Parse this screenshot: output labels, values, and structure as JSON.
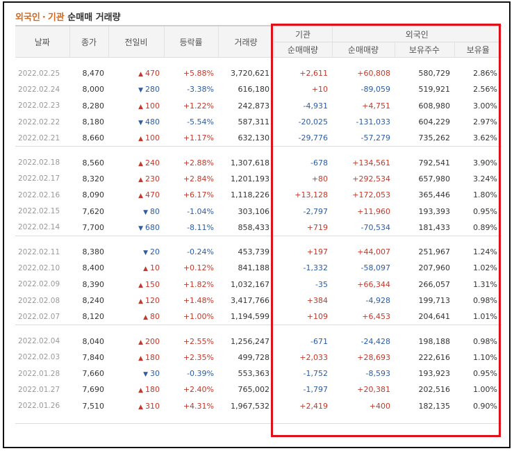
{
  "title": {
    "foreign": "외국인",
    "separator": "·",
    "institution": "기관",
    "rest": "순매매 거래량"
  },
  "headers": {
    "date": "날짜",
    "close": "종가",
    "change": "전일비",
    "rate": "등락률",
    "volume": "거래량",
    "institution": "기관",
    "foreign": "외국인",
    "inst_net": "순매매량",
    "foreign_net": "순매매량",
    "holdings": "보유주수",
    "ratio": "보유율"
  },
  "colors": {
    "up": "#c0392b",
    "down": "#2d5c9f",
    "highlight_box": "#e0101a"
  },
  "groups": [
    [
      {
        "date": "2022.02.25",
        "close": "8,470",
        "dir": "up",
        "change": "470",
        "rate": "+5.88%",
        "volume": "3,720,621",
        "inst": "+2,611",
        "foreign": "+60,808",
        "holdings": "580,729",
        "ratio": "2.86%"
      },
      {
        "date": "2022.02.24",
        "close": "8,000",
        "dir": "down",
        "change": "280",
        "rate": "-3.38%",
        "volume": "616,180",
        "inst": "+10",
        "foreign": "-89,059",
        "holdings": "519,921",
        "ratio": "2.56%"
      },
      {
        "date": "2022.02.23",
        "close": "8,280",
        "dir": "up",
        "change": "100",
        "rate": "+1.22%",
        "volume": "242,873",
        "inst": "-4,931",
        "foreign": "+4,751",
        "holdings": "608,980",
        "ratio": "3.00%"
      },
      {
        "date": "2022.02.22",
        "close": "8,180",
        "dir": "down",
        "change": "480",
        "rate": "-5.54%",
        "volume": "587,311",
        "inst": "-20,025",
        "foreign": "-131,033",
        "holdings": "604,229",
        "ratio": "2.97%"
      },
      {
        "date": "2022.02.21",
        "close": "8,660",
        "dir": "up",
        "change": "100",
        "rate": "+1.17%",
        "volume": "632,130",
        "inst": "-29,776",
        "foreign": "-57,279",
        "holdings": "735,262",
        "ratio": "3.62%"
      }
    ],
    [
      {
        "date": "2022.02.18",
        "close": "8,560",
        "dir": "up",
        "change": "240",
        "rate": "+2.88%",
        "volume": "1,307,618",
        "inst": "-678",
        "foreign": "+134,561",
        "holdings": "792,541",
        "ratio": "3.90%"
      },
      {
        "date": "2022.02.17",
        "close": "8,320",
        "dir": "up",
        "change": "230",
        "rate": "+2.84%",
        "volume": "1,201,193",
        "inst": "+80",
        "foreign": "+292,534",
        "holdings": "657,980",
        "ratio": "3.24%"
      },
      {
        "date": "2022.02.16",
        "close": "8,090",
        "dir": "up",
        "change": "470",
        "rate": "+6.17%",
        "volume": "1,118,226",
        "inst": "+13,128",
        "foreign": "+172,053",
        "holdings": "365,446",
        "ratio": "1.80%"
      },
      {
        "date": "2022.02.15",
        "close": "7,620",
        "dir": "down",
        "change": "80",
        "rate": "-1.04%",
        "volume": "303,106",
        "inst": "-2,797",
        "foreign": "+11,960",
        "holdings": "193,393",
        "ratio": "0.95%"
      },
      {
        "date": "2022.02.14",
        "close": "7,700",
        "dir": "down",
        "change": "680",
        "rate": "-8.11%",
        "volume": "858,433",
        "inst": "+719",
        "foreign": "-70,534",
        "holdings": "181,433",
        "ratio": "0.89%"
      }
    ],
    [
      {
        "date": "2022.02.11",
        "close": "8,380",
        "dir": "down",
        "change": "20",
        "rate": "-0.24%",
        "volume": "453,739",
        "inst": "+197",
        "foreign": "+44,007",
        "holdings": "251,967",
        "ratio": "1.24%"
      },
      {
        "date": "2022.02.10",
        "close": "8,400",
        "dir": "up",
        "change": "10",
        "rate": "+0.12%",
        "volume": "841,188",
        "inst": "-1,332",
        "foreign": "-58,097",
        "holdings": "207,960",
        "ratio": "1.02%"
      },
      {
        "date": "2022.02.09",
        "close": "8,390",
        "dir": "up",
        "change": "150",
        "rate": "+1.82%",
        "volume": "1,032,167",
        "inst": "-35",
        "foreign": "+66,344",
        "holdings": "266,057",
        "ratio": "1.31%"
      },
      {
        "date": "2022.02.08",
        "close": "8,240",
        "dir": "up",
        "change": "120",
        "rate": "+1.48%",
        "volume": "3,417,766",
        "inst": "+384",
        "foreign": "-4,928",
        "holdings": "199,713",
        "ratio": "0.98%"
      },
      {
        "date": "2022.02.07",
        "close": "8,120",
        "dir": "up",
        "change": "80",
        "rate": "+1.00%",
        "volume": "1,194,599",
        "inst": "+109",
        "foreign": "+6,453",
        "holdings": "204,641",
        "ratio": "1.01%"
      }
    ],
    [
      {
        "date": "2022.02.04",
        "close": "8,040",
        "dir": "up",
        "change": "200",
        "rate": "+2.55%",
        "volume": "1,256,247",
        "inst": "-671",
        "foreign": "-24,428",
        "holdings": "198,188",
        "ratio": "0.98%"
      },
      {
        "date": "2022.02.03",
        "close": "7,840",
        "dir": "up",
        "change": "180",
        "rate": "+2.35%",
        "volume": "499,728",
        "inst": "+2,033",
        "foreign": "+28,693",
        "holdings": "222,616",
        "ratio": "1.10%"
      },
      {
        "date": "2022.01.28",
        "close": "7,660",
        "dir": "down",
        "change": "30",
        "rate": "-0.39%",
        "volume": "553,363",
        "inst": "-1,752",
        "foreign": "-8,593",
        "holdings": "193,923",
        "ratio": "0.95%"
      },
      {
        "date": "2022.01.27",
        "close": "7,690",
        "dir": "up",
        "change": "180",
        "rate": "+2.40%",
        "volume": "765,002",
        "inst": "-1,797",
        "foreign": "+20,381",
        "holdings": "202,516",
        "ratio": "1.00%"
      },
      {
        "date": "2022.01.26",
        "close": "7,510",
        "dir": "up",
        "change": "310",
        "rate": "+4.31%",
        "volume": "1,967,532",
        "inst": "+2,419",
        "foreign": "+400",
        "holdings": "182,135",
        "ratio": "0.90%"
      }
    ]
  ]
}
